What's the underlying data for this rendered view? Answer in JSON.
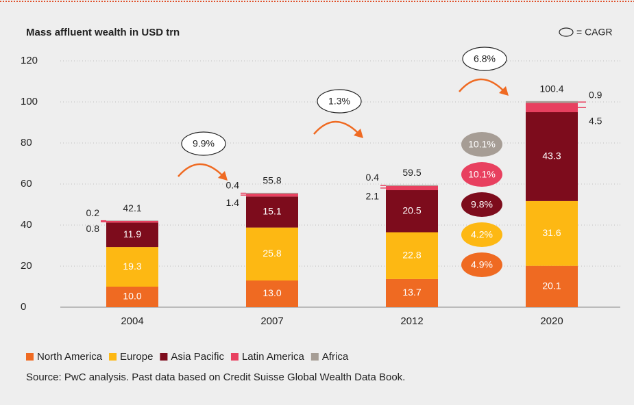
{
  "chart_data": {
    "type": "stacked_bar",
    "title": "Mass affluent wealth in USD trn",
    "categories": [
      "2004",
      "2007",
      "2012",
      "2020"
    ],
    "series": [
      {
        "name": "North America",
        "color": "#ef6a22",
        "values": [
          10.0,
          13.0,
          13.7,
          20.1
        ],
        "value_labels": [
          "10.0",
          "13.0",
          "13.7",
          "20.1"
        ]
      },
      {
        "name": "Europe",
        "color": "#fdb813",
        "values": [
          19.3,
          25.8,
          22.8,
          31.6
        ],
        "value_labels": [
          "19.3",
          "25.8",
          "22.8",
          "31.6"
        ]
      },
      {
        "name": "Asia Pacific",
        "color": "#7d0c1c",
        "values": [
          11.9,
          15.1,
          20.5,
          43.3
        ],
        "value_labels": [
          "11.9",
          "15.1",
          "20.5",
          "43.3"
        ]
      },
      {
        "name": "Latin America",
        "color": "#e8405f",
        "values": [
          0.8,
          1.4,
          2.1,
          4.5
        ],
        "value_labels": [
          "0.8",
          "1.4",
          "2.1",
          "4.5"
        ]
      },
      {
        "name": "Africa",
        "color": "#a69d95",
        "values": [
          0.2,
          0.4,
          0.4,
          0.9
        ],
        "value_labels": [
          "0.2",
          "0.4",
          "0.4",
          "0.9"
        ]
      }
    ],
    "totals": [
      42.1,
      55.8,
      59.5,
      100.4
    ],
    "ylim": [
      0,
      120
    ],
    "yticks": [
      0,
      20,
      40,
      60,
      80,
      100,
      120
    ],
    "grid": true,
    "legend": "bottom-left",
    "cagr_legend": "= CAGR",
    "cagr_totals": [
      "9.9%",
      "1.3%",
      "6.8%"
    ],
    "cagr_regions": [
      "4.9%",
      "4.2%",
      "9.8%",
      "10.1%",
      "10.1%"
    ]
  },
  "source": "Source: PwC analysis. Past data based on Credit Suisse Global Wealth Data Book."
}
